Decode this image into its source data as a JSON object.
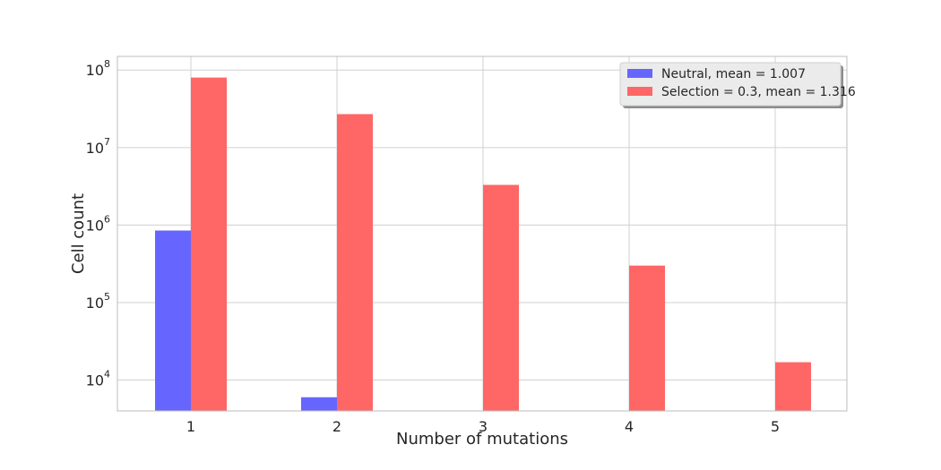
{
  "chart_data": {
    "type": "bar",
    "xlabel": "Number of mutations",
    "ylabel": "Cell count",
    "yscale": "log",
    "ylim": [
      4000,
      150000000
    ],
    "categories": [
      "1",
      "2",
      "3",
      "4",
      "5"
    ],
    "y_ticks": [
      {
        "value": 10000,
        "base": "10",
        "exp": "4"
      },
      {
        "value": 100000,
        "base": "10",
        "exp": "5"
      },
      {
        "value": 1000000,
        "base": "10",
        "exp": "6"
      },
      {
        "value": 10000000,
        "base": "10",
        "exp": "7"
      },
      {
        "value": 100000000,
        "base": "10",
        "exp": "8"
      }
    ],
    "series": [
      {
        "name": "Neutral, mean = 1.007",
        "color": "#6666ff",
        "values": [
          850000,
          6000,
          null,
          null,
          null
        ]
      },
      {
        "name": "Selection = 0.3, mean = 1.316",
        "color": "#ff6666",
        "values": [
          80000000,
          27000000,
          3300000,
          300000,
          17000
        ]
      }
    ],
    "grid": true,
    "legend_position": "top-right"
  }
}
